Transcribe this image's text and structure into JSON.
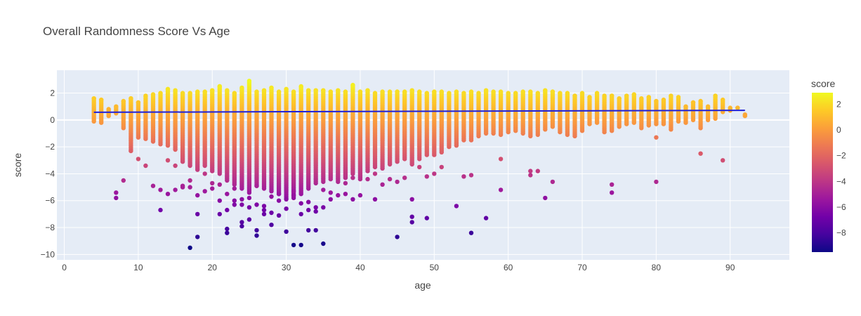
{
  "chart_data": {
    "type": "scatter",
    "title": "Overall Randomness Score Vs Age",
    "xlabel": "age",
    "ylabel": "score",
    "xlim": [
      -1,
      98
    ],
    "ylim": [
      -10.4,
      3.7
    ],
    "xticks": [
      0,
      10,
      20,
      30,
      40,
      50,
      60,
      70,
      80,
      90
    ],
    "yticks": [
      -10,
      -8,
      -6,
      -4,
      -2,
      0,
      2
    ],
    "grid": true,
    "legend": "none",
    "colorbar": {
      "title": "score",
      "range": [
        -9.5,
        2.9
      ],
      "ticks": [
        -8,
        -6,
        -4,
        -2,
        0,
        2
      ],
      "colorscale": [
        "#0d0887",
        "#46039f",
        "#7201a8",
        "#9c179e",
        "#bd3786",
        "#d8576b",
        "#ed7953",
        "#fb9f3a",
        "#fdca26",
        "#f0f921"
      ]
    },
    "trendline": {
      "x": [
        4,
        92
      ],
      "y": [
        0.57,
        0.72
      ],
      "color": "#1f1fd6"
    },
    "series": [
      {
        "color_by": "score",
        "columns": {
          "ages": [
            4,
            5,
            6,
            7,
            8,
            9,
            10,
            11,
            12,
            13,
            14,
            15,
            16,
            17,
            18,
            19,
            20,
            21,
            22,
            23,
            24,
            25,
            26,
            27,
            28,
            29,
            30,
            31,
            32,
            33,
            34,
            35,
            36,
            37,
            38,
            39,
            40,
            41,
            42,
            43,
            44,
            45,
            46,
            47,
            48,
            49,
            50,
            51,
            52,
            53,
            54,
            55,
            56,
            57,
            58,
            59,
            60,
            61,
            62,
            63,
            64,
            65,
            66,
            67,
            68,
            69,
            70,
            71,
            72,
            73,
            74,
            75,
            76,
            77,
            78,
            79,
            80,
            81,
            82,
            83,
            84,
            85,
            86,
            87,
            88,
            89,
            90,
            91,
            92
          ],
          "max": [
            1.6,
            1.5,
            0.8,
            1.0,
            1.4,
            1.6,
            1.3,
            1.8,
            1.9,
            2.0,
            2.3,
            2.2,
            2.0,
            2.0,
            2.1,
            2.1,
            2.2,
            2.5,
            2.2,
            2.0,
            2.4,
            2.9,
            2.1,
            2.2,
            2.4,
            2.1,
            2.3,
            2.1,
            2.5,
            2.2,
            2.2,
            2.2,
            2.1,
            2.2,
            2.1,
            2.6,
            2.1,
            2.2,
            2.0,
            2.1,
            2.1,
            2.1,
            2.1,
            2.2,
            2.1,
            2.0,
            2.1,
            2.1,
            2.0,
            2.1,
            2.0,
            2.1,
            2.0,
            2.2,
            2.1,
            2.1,
            2.0,
            2.0,
            2.1,
            2.1,
            2.0,
            2.2,
            2.1,
            2.0,
            2.0,
            1.8,
            2.0,
            1.7,
            2.0,
            1.8,
            1.8,
            1.6,
            1.8,
            1.9,
            1.6,
            1.7,
            1.4,
            1.5,
            1.8,
            1.7,
            1.0,
            1.3,
            1.4,
            1.0,
            1.8,
            1.5,
            0.9,
            0.9,
            0.4
          ],
          "min": [
            -0.1,
            -0.2,
            0.3,
            0.5,
            -0.6,
            -2.3,
            -1.3,
            -1.4,
            -1.6,
            -1.8,
            -1.9,
            -2.2,
            -3.1,
            -3.4,
            -3.7,
            -3.4,
            -3.8,
            -4.0,
            -4.5,
            -4.8,
            -5.1,
            -5.4,
            -4.9,
            -5.1,
            -5.3,
            -5.5,
            -5.8,
            -5.8,
            -5.5,
            -5.1,
            -4.7,
            -4.6,
            -4.4,
            -4.6,
            -4.3,
            -4.0,
            -4.4,
            -3.8,
            -3.5,
            -3.6,
            -3.3,
            -3.1,
            -2.9,
            -3.3,
            -2.9,
            -2.6,
            -2.6,
            -2.4,
            -2.0,
            -1.9,
            -1.5,
            -1.5,
            -1.2,
            -1.0,
            -1.0,
            -1.1,
            -0.9,
            -0.8,
            -1.0,
            -1.2,
            -1.1,
            -0.7,
            -0.5,
            -0.9,
            -1.1,
            -1.2,
            -0.8,
            -0.3,
            -0.2,
            -0.9,
            -0.8,
            -0.5,
            -0.3,
            -0.2,
            -0.6,
            -0.4,
            -0.3,
            -0.3,
            -0.7,
            -0.1,
            -0.2,
            0.0,
            -0.6,
            0.0,
            0.1,
            0.6,
            0.7,
            0.9,
            0.3
          ]
        },
        "outliers": [
          [
            7,
            -5.4
          ],
          [
            7,
            -5.8
          ],
          [
            8,
            -4.5
          ],
          [
            9,
            -2.3
          ],
          [
            10,
            -2.9
          ],
          [
            11,
            -3.4
          ],
          [
            12,
            -4.9
          ],
          [
            13,
            -5.2
          ],
          [
            13,
            -6.7
          ],
          [
            14,
            -5.5
          ],
          [
            14,
            -3.0
          ],
          [
            15,
            -3.4
          ],
          [
            15,
            -5.2
          ],
          [
            16,
            -5.0
          ],
          [
            16,
            -4.9
          ],
          [
            17,
            -9.5
          ],
          [
            17,
            -5.0
          ],
          [
            17,
            -4.5
          ],
          [
            18,
            -8.7
          ],
          [
            18,
            -7.0
          ],
          [
            18,
            -5.6
          ],
          [
            19,
            -5.3
          ],
          [
            19,
            -4.0
          ],
          [
            20,
            -5.1
          ],
          [
            20,
            -4.7
          ],
          [
            21,
            -7.0
          ],
          [
            21,
            -6.0
          ],
          [
            21,
            -4.8
          ],
          [
            22,
            -8.1
          ],
          [
            22,
            -8.4
          ],
          [
            22,
            -6.7
          ],
          [
            22,
            -5.5
          ],
          [
            23,
            -6.0
          ],
          [
            23,
            -6.3
          ],
          [
            23,
            -5.1
          ],
          [
            24,
            -7.6
          ],
          [
            24,
            -7.9
          ],
          [
            24,
            -6.3
          ],
          [
            24,
            -5.9
          ],
          [
            25,
            -7.4
          ],
          [
            25,
            -6.5
          ],
          [
            25,
            -5.8
          ],
          [
            26,
            -8.2
          ],
          [
            26,
            -8.6
          ],
          [
            26,
            -6.3
          ],
          [
            26,
            -4.9
          ],
          [
            27,
            -7.0
          ],
          [
            27,
            -6.7
          ],
          [
            27,
            -6.4
          ],
          [
            28,
            -7.8
          ],
          [
            28,
            -6.9
          ],
          [
            28,
            -5.7
          ],
          [
            29,
            -7.1
          ],
          [
            29,
            -5.5
          ],
          [
            29,
            -6.0
          ],
          [
            30,
            -8.3
          ],
          [
            30,
            -6.6
          ],
          [
            30,
            -5.9
          ],
          [
            31,
            -9.3
          ],
          [
            31,
            -5.3
          ],
          [
            31,
            -5.6
          ],
          [
            32,
            -9.3
          ],
          [
            32,
            -6.2
          ],
          [
            32,
            -7.0
          ],
          [
            33,
            -8.2
          ],
          [
            33,
            -6.1
          ],
          [
            33,
            -6.7
          ],
          [
            34,
            -8.2
          ],
          [
            34,
            -6.8
          ],
          [
            34,
            -6.5
          ],
          [
            35,
            -9.2
          ],
          [
            35,
            -6.5
          ],
          [
            35,
            -5.2
          ],
          [
            36,
            -5.9
          ],
          [
            36,
            -5.4
          ],
          [
            37,
            -5.6
          ],
          [
            38,
            -5.5
          ],
          [
            38,
            -4.7
          ],
          [
            39,
            -5.9
          ],
          [
            39,
            -4.3
          ],
          [
            40,
            -5.6
          ],
          [
            41,
            -4.4
          ],
          [
            42,
            -5.9
          ],
          [
            42,
            -4.0
          ],
          [
            43,
            -4.8
          ],
          [
            44,
            -4.4
          ],
          [
            45,
            -8.7
          ],
          [
            45,
            -4.6
          ],
          [
            46,
            -4.3
          ],
          [
            47,
            -7.6
          ],
          [
            47,
            -7.2
          ],
          [
            47,
            -5.9
          ],
          [
            48,
            -3.5
          ],
          [
            49,
            -7.3
          ],
          [
            49,
            -4.2
          ],
          [
            50,
            -4.0
          ],
          [
            51,
            -3.5
          ],
          [
            53,
            -6.4
          ],
          [
            54,
            -4.2
          ],
          [
            55,
            -8.4
          ],
          [
            55,
            -4.1
          ],
          [
            57,
            -7.3
          ],
          [
            59,
            -5.2
          ],
          [
            59,
            -2.9
          ],
          [
            63,
            -3.8
          ],
          [
            63,
            -4.1
          ],
          [
            64,
            -3.8
          ],
          [
            65,
            -5.8
          ],
          [
            66,
            -4.6
          ],
          [
            74,
            -4.8
          ],
          [
            74,
            -5.4
          ],
          [
            80,
            -4.6
          ],
          [
            80,
            -1.3
          ],
          [
            86,
            -2.5
          ],
          [
            89,
            -3.0
          ]
        ]
      }
    ]
  }
}
